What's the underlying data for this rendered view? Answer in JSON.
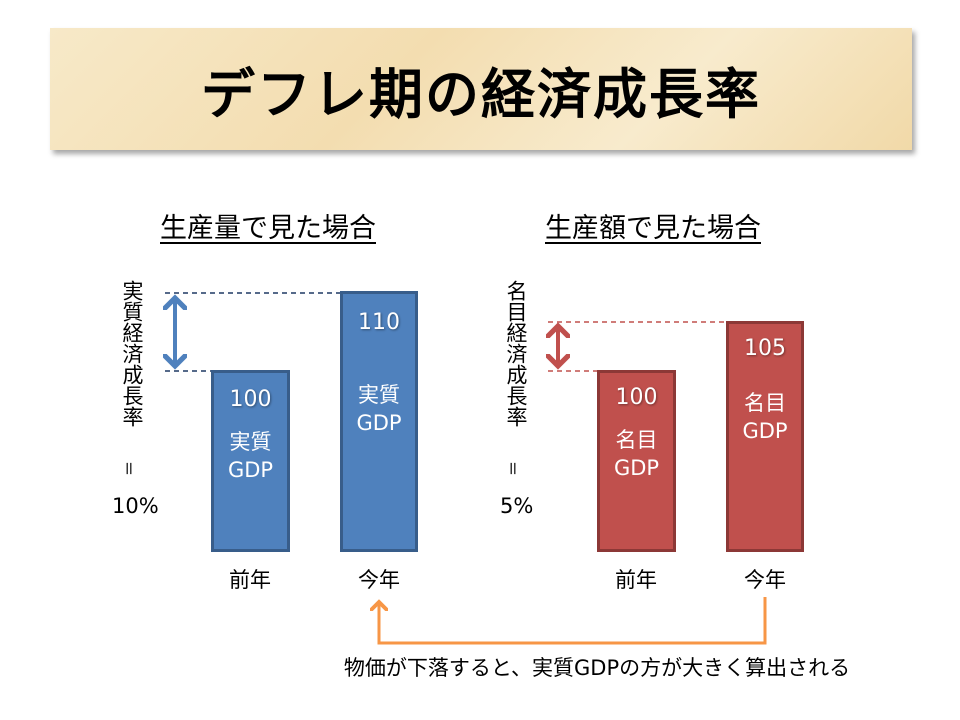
{
  "title": "デフレ期の経済成長率",
  "left": {
    "subtitle": "生産量で見た場合",
    "side_label": "実質経済成長率",
    "equals": "=",
    "rate": "10%",
    "bars": [
      {
        "year": "前年",
        "value": "100",
        "label1": "実質",
        "label2": "GDP"
      },
      {
        "year": "今年",
        "value": "110",
        "label1": "実質",
        "label2": "GDP"
      }
    ],
    "color": "#4f81bd"
  },
  "right": {
    "subtitle": "生産額で見た場合",
    "side_label": "名目経済成長率",
    "equals": "=",
    "rate": "5%",
    "bars": [
      {
        "year": "前年",
        "value": "100",
        "label1": "名目",
        "label2": "GDP"
      },
      {
        "year": "今年",
        "value": "105",
        "label1": "名目",
        "label2": "GDP"
      }
    ],
    "color": "#c0504d"
  },
  "note": "物価が下落すると、実質GDPの方が大きく算出される",
  "note_color": "#f79646"
}
